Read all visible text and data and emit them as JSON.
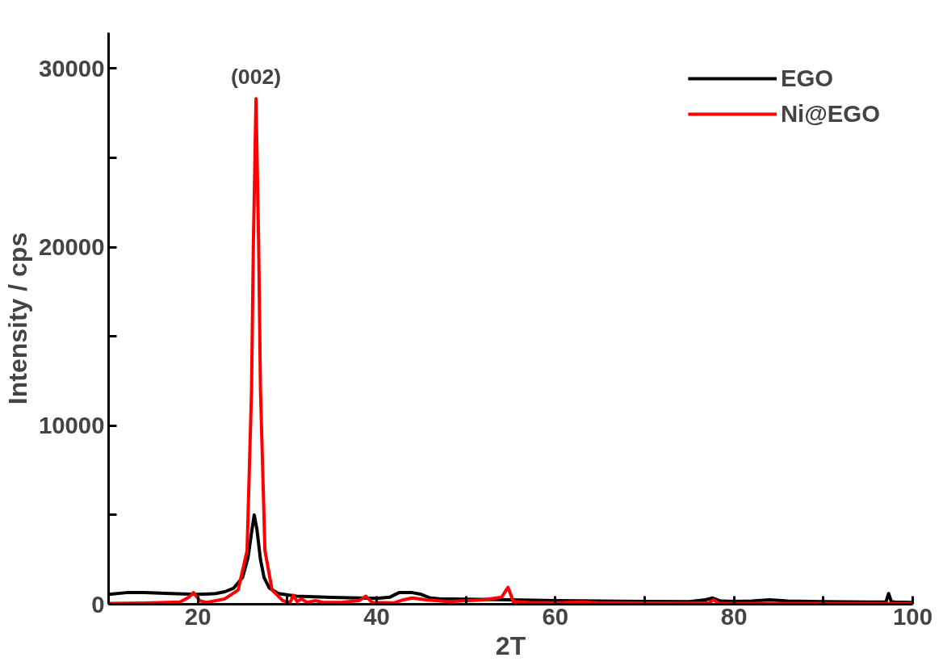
{
  "chart_data": {
    "type": "line",
    "xlabel": "2T",
    "ylabel": "Intensity / cps",
    "xlim": [
      10,
      100
    ],
    "ylim": [
      0,
      32000
    ],
    "xticks": [
      20,
      {
        "value": 30,
        "label": null
      },
      40,
      {
        "value": 50,
        "label": null
      },
      60,
      {
        "value": 70,
        "label": null
      },
      80,
      {
        "value": 90,
        "label": null
      },
      100
    ],
    "yticks": [
      0,
      {
        "value": 5000,
        "label": null
      },
      10000,
      {
        "value": 15000,
        "label": null
      },
      20000,
      {
        "value": 25000,
        "label": null
      },
      30000
    ],
    "grid": false,
    "legend": "top right",
    "marker": "none",
    "line_style": "solid",
    "annotations": [
      {
        "text": "(002)",
        "x": 26.5,
        "y": 28300
      }
    ],
    "series": [
      {
        "name": "EGO",
        "color": "#000000",
        "x": [
          10,
          12,
          14,
          17,
          20,
          22,
          23,
          24,
          25,
          25.6,
          26,
          26.3,
          26.6,
          27,
          27.4,
          28,
          29,
          31,
          35,
          40,
          41.5,
          42.5,
          44,
          45,
          46,
          47,
          50,
          55,
          60,
          65,
          70,
          75,
          76.8,
          77.6,
          78.5,
          80,
          82,
          84,
          86,
          90,
          95,
          97,
          97.3,
          97.6,
          98,
          100
        ],
        "values": [
          550,
          650,
          650,
          600,
          550,
          600,
          700,
          900,
          1500,
          2600,
          4000,
          5000,
          4200,
          2500,
          1500,
          900,
          600,
          450,
          380,
          330,
          400,
          650,
          650,
          550,
          350,
          300,
          280,
          250,
          200,
          180,
          160,
          150,
          250,
          350,
          180,
          160,
          180,
          250,
          180,
          150,
          120,
          120,
          600,
          150,
          120,
          100
        ]
      },
      {
        "name": "Ni@EGO",
        "color": "#ff0000",
        "x": [
          10,
          14,
          18,
          19,
          19.5,
          20.2,
          21,
          23,
          24.5,
          25.5,
          26,
          26.2,
          26.5,
          26.8,
          27,
          27.5,
          28.3,
          29.5,
          30.3,
          30.7,
          31.1,
          31.6,
          32.2,
          33.2,
          34,
          36,
          38,
          38.8,
          39.5,
          42,
          43,
          44,
          45.5,
          48,
          52,
          54,
          54.7,
          55.3,
          57,
          60,
          63,
          65,
          75,
          77.2,
          77.7,
          78.3,
          85,
          100
        ],
        "values": [
          50,
          70,
          120,
          400,
          650,
          200,
          100,
          300,
          800,
          3000,
          12000,
          20000,
          28300,
          20000,
          12000,
          3000,
          800,
          200,
          100,
          500,
          150,
          300,
          100,
          200,
          100,
          100,
          200,
          450,
          100,
          80,
          250,
          350,
          250,
          150,
          250,
          400,
          950,
          150,
          100,
          80,
          120,
          80,
          60,
          80,
          250,
          50,
          50,
          50
        ]
      }
    ]
  }
}
